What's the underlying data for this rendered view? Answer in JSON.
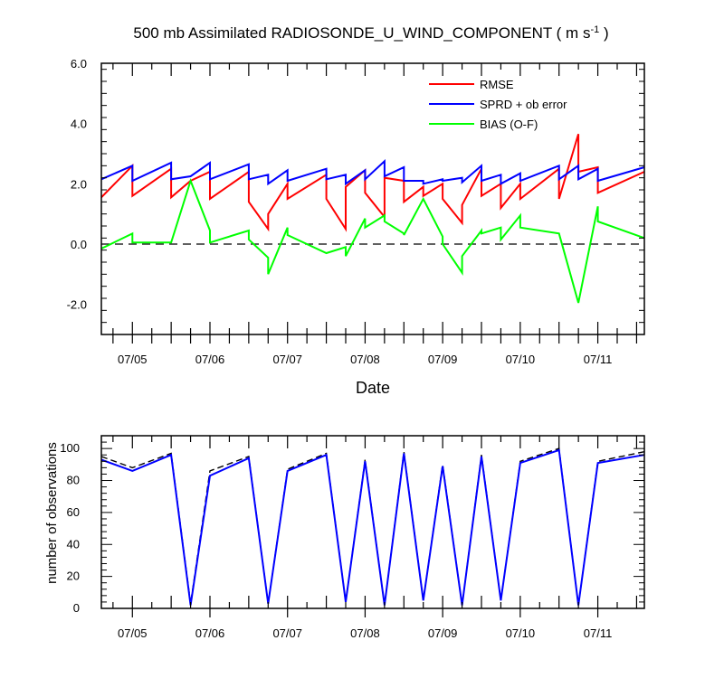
{
  "page": {
    "title_main": "500 mb Assimilated RADIOSONDE_U_WIND_COMPONENT ( m s",
    "title_sup": "-1",
    "title_end": " )"
  },
  "colors": {
    "rmse": "#ff0000",
    "sprd": "#0000ff",
    "bias": "#00ff00",
    "obs_used": "#0000ff",
    "obs_possible": "#000000",
    "axis": "#000000"
  },
  "chart_data": [
    {
      "type": "line",
      "title": "500 mb Assimilated RADIOSONDE_U_WIND_COMPONENT ( m s-1 )",
      "xlabel": "Date",
      "ylabel": "",
      "xlim": [
        0.6,
        7.6
      ],
      "ylim": [
        -3.0,
        6.0
      ],
      "yticks": [
        6.0,
        4.0,
        2.0,
        0.0,
        -2.0
      ],
      "ytick_labels": [
        "6.0",
        "4.0",
        "2.0",
        "0.0",
        "-2.0"
      ],
      "xticks": [
        1,
        2,
        3,
        4,
        5,
        6,
        7
      ],
      "xtick_labels": [
        "07/05",
        "07/06",
        "07/07",
        "07/08",
        "07/09",
        "07/10",
        "07/11"
      ],
      "zero_line": true,
      "legend": [
        "RMSE",
        "SPRD + ob error",
        "BIAS (O-F)"
      ],
      "legend_position": "top-right",
      "series": [
        {
          "name": "RMSE",
          "key": "rmse",
          "points": [
            [
              0.6,
              1.55
            ],
            [
              1.0,
              2.6
            ],
            [
              1.0,
              1.6
            ],
            [
              1.5,
              2.5
            ],
            [
              1.5,
              1.55
            ],
            [
              1.75,
              2.1
            ],
            [
              2.0,
              2.4
            ],
            [
              2.0,
              1.5
            ],
            [
              2.5,
              2.4
            ],
            [
              2.5,
              1.4
            ],
            [
              2.75,
              0.5
            ],
            [
              2.75,
              1.0
            ],
            [
              3.0,
              2.0
            ],
            [
              3.0,
              1.5
            ],
            [
              3.5,
              2.3
            ],
            [
              3.5,
              1.5
            ],
            [
              3.75,
              0.5
            ],
            [
              3.75,
              1.9
            ],
            [
              4.0,
              2.45
            ],
            [
              4.0,
              1.7
            ],
            [
              4.25,
              0.9
            ],
            [
              4.25,
              2.2
            ],
            [
              4.5,
              2.1
            ],
            [
              4.5,
              1.4
            ],
            [
              4.75,
              1.9
            ],
            [
              4.75,
              1.6
            ],
            [
              5.0,
              2.0
            ],
            [
              5.0,
              1.5
            ],
            [
              5.25,
              0.7
            ],
            [
              5.25,
              1.3
            ],
            [
              5.5,
              2.5
            ],
            [
              5.5,
              1.6
            ],
            [
              5.75,
              2.0
            ],
            [
              5.75,
              1.2
            ],
            [
              6.0,
              2.0
            ],
            [
              6.0,
              1.5
            ],
            [
              6.5,
              2.5
            ],
            [
              6.5,
              1.5
            ],
            [
              6.75,
              3.65
            ],
            [
              6.75,
              2.4
            ],
            [
              7.0,
              2.55
            ],
            [
              7.0,
              1.7
            ],
            [
              7.6,
              2.4
            ]
          ]
        },
        {
          "name": "SPRD + ob error",
          "key": "sprd",
          "points": [
            [
              0.6,
              2.15
            ],
            [
              1.0,
              2.6
            ],
            [
              1.0,
              2.1
            ],
            [
              1.5,
              2.7
            ],
            [
              1.5,
              2.15
            ],
            [
              1.75,
              2.25
            ],
            [
              2.0,
              2.7
            ],
            [
              2.0,
              2.15
            ],
            [
              2.5,
              2.65
            ],
            [
              2.5,
              2.15
            ],
            [
              2.75,
              2.3
            ],
            [
              2.75,
              2.0
            ],
            [
              3.0,
              2.45
            ],
            [
              3.0,
              2.1
            ],
            [
              3.5,
              2.5
            ],
            [
              3.5,
              2.15
            ],
            [
              3.75,
              2.3
            ],
            [
              3.75,
              2.0
            ],
            [
              4.0,
              2.45
            ],
            [
              4.0,
              2.15
            ],
            [
              4.25,
              2.75
            ],
            [
              4.25,
              2.25
            ],
            [
              4.5,
              2.55
            ],
            [
              4.5,
              2.1
            ],
            [
              4.75,
              2.1
            ],
            [
              4.75,
              2.0
            ],
            [
              5.0,
              2.15
            ],
            [
              5.0,
              2.1
            ],
            [
              5.25,
              2.2
            ],
            [
              5.25,
              2.05
            ],
            [
              5.5,
              2.6
            ],
            [
              5.5,
              2.1
            ],
            [
              5.75,
              2.3
            ],
            [
              5.75,
              2.0
            ],
            [
              6.0,
              2.35
            ],
            [
              6.0,
              2.1
            ],
            [
              6.5,
              2.6
            ],
            [
              6.5,
              2.15
            ],
            [
              6.75,
              2.6
            ],
            [
              6.75,
              2.15
            ],
            [
              7.0,
              2.5
            ],
            [
              7.0,
              2.1
            ],
            [
              7.6,
              2.55
            ]
          ]
        },
        {
          "name": "BIAS (O-F)",
          "key": "bias",
          "points": [
            [
              0.6,
              -0.15
            ],
            [
              1.0,
              0.35
            ],
            [
              1.0,
              0.05
            ],
            [
              1.5,
              0.05
            ],
            [
              1.75,
              2.1
            ],
            [
              2.0,
              0.45
            ],
            [
              2.0,
              0.05
            ],
            [
              2.5,
              0.45
            ],
            [
              2.5,
              0.15
            ],
            [
              2.75,
              -0.45
            ],
            [
              2.75,
              -1.0
            ],
            [
              3.0,
              0.55
            ],
            [
              3.0,
              0.3
            ],
            [
              3.5,
              -0.3
            ],
            [
              3.75,
              -0.1
            ],
            [
              3.75,
              -0.4
            ],
            [
              4.0,
              0.85
            ],
            [
              4.0,
              0.55
            ],
            [
              4.25,
              0.95
            ],
            [
              4.25,
              0.75
            ],
            [
              4.5,
              0.35
            ],
            [
              4.5,
              0.3
            ],
            [
              4.75,
              1.5
            ],
            [
              5.0,
              0.25
            ],
            [
              5.0,
              0.0
            ],
            [
              5.25,
              -0.95
            ],
            [
              5.25,
              -0.4
            ],
            [
              5.5,
              0.45
            ],
            [
              5.5,
              0.35
            ],
            [
              5.75,
              0.55
            ],
            [
              5.75,
              0.15
            ],
            [
              6.0,
              0.95
            ],
            [
              6.0,
              0.55
            ],
            [
              6.5,
              0.35
            ],
            [
              6.75,
              -1.95
            ],
            [
              7.0,
              1.25
            ],
            [
              7.0,
              0.75
            ],
            [
              7.6,
              0.2
            ]
          ]
        }
      ]
    },
    {
      "type": "line",
      "title": "",
      "xlabel": "",
      "ylabel": "number of observations",
      "xlim": [
        0.6,
        7.6
      ],
      "ylim": [
        0,
        108
      ],
      "yticks": [
        0,
        20,
        40,
        60,
        80,
        100
      ],
      "ytick_labels": [
        "0",
        "20",
        "40",
        "60",
        "80",
        "100"
      ],
      "xticks": [
        1,
        2,
        3,
        4,
        5,
        6,
        7
      ],
      "xtick_labels": [
        "07/05",
        "07/06",
        "07/07",
        "07/08",
        "07/09",
        "07/10",
        "07/11"
      ],
      "series": [
        {
          "name": "possible",
          "key": "obs_possible",
          "dashed": true,
          "points": [
            [
              0.6,
              95
            ],
            [
              1.0,
              88
            ],
            [
              1.5,
              97
            ],
            [
              1.75,
              3
            ],
            [
              2.0,
              86
            ],
            [
              2.5,
              95
            ],
            [
              2.75,
              3
            ],
            [
              3.0,
              87
            ],
            [
              3.5,
              97
            ],
            [
              3.75,
              4
            ],
            [
              4.0,
              93
            ],
            [
              4.25,
              2
            ],
            [
              4.5,
              98
            ],
            [
              4.75,
              5
            ],
            [
              5.0,
              90
            ],
            [
              5.25,
              2
            ],
            [
              5.5,
              96
            ],
            [
              5.75,
              5
            ],
            [
              6.0,
              92
            ],
            [
              6.5,
              100
            ],
            [
              6.75,
              2
            ],
            [
              7.0,
              92
            ],
            [
              7.6,
              98
            ]
          ]
        },
        {
          "name": "used",
          "key": "obs_used",
          "dashed": false,
          "points": [
            [
              0.6,
              93
            ],
            [
              1.0,
              86
            ],
            [
              1.5,
              96
            ],
            [
              1.75,
              2
            ],
            [
              2.0,
              83
            ],
            [
              2.5,
              94
            ],
            [
              2.75,
              3
            ],
            [
              3.0,
              86
            ],
            [
              3.5,
              96
            ],
            [
              3.75,
              4
            ],
            [
              4.0,
              92
            ],
            [
              4.25,
              2
            ],
            [
              4.5,
              97
            ],
            [
              4.75,
              5
            ],
            [
              5.0,
              89
            ],
            [
              5.25,
              2
            ],
            [
              5.5,
              95
            ],
            [
              5.75,
              5
            ],
            [
              6.0,
              91
            ],
            [
              6.5,
              99
            ],
            [
              6.75,
              2
            ],
            [
              7.0,
              91
            ],
            [
              7.6,
              96
            ]
          ]
        }
      ]
    }
  ]
}
